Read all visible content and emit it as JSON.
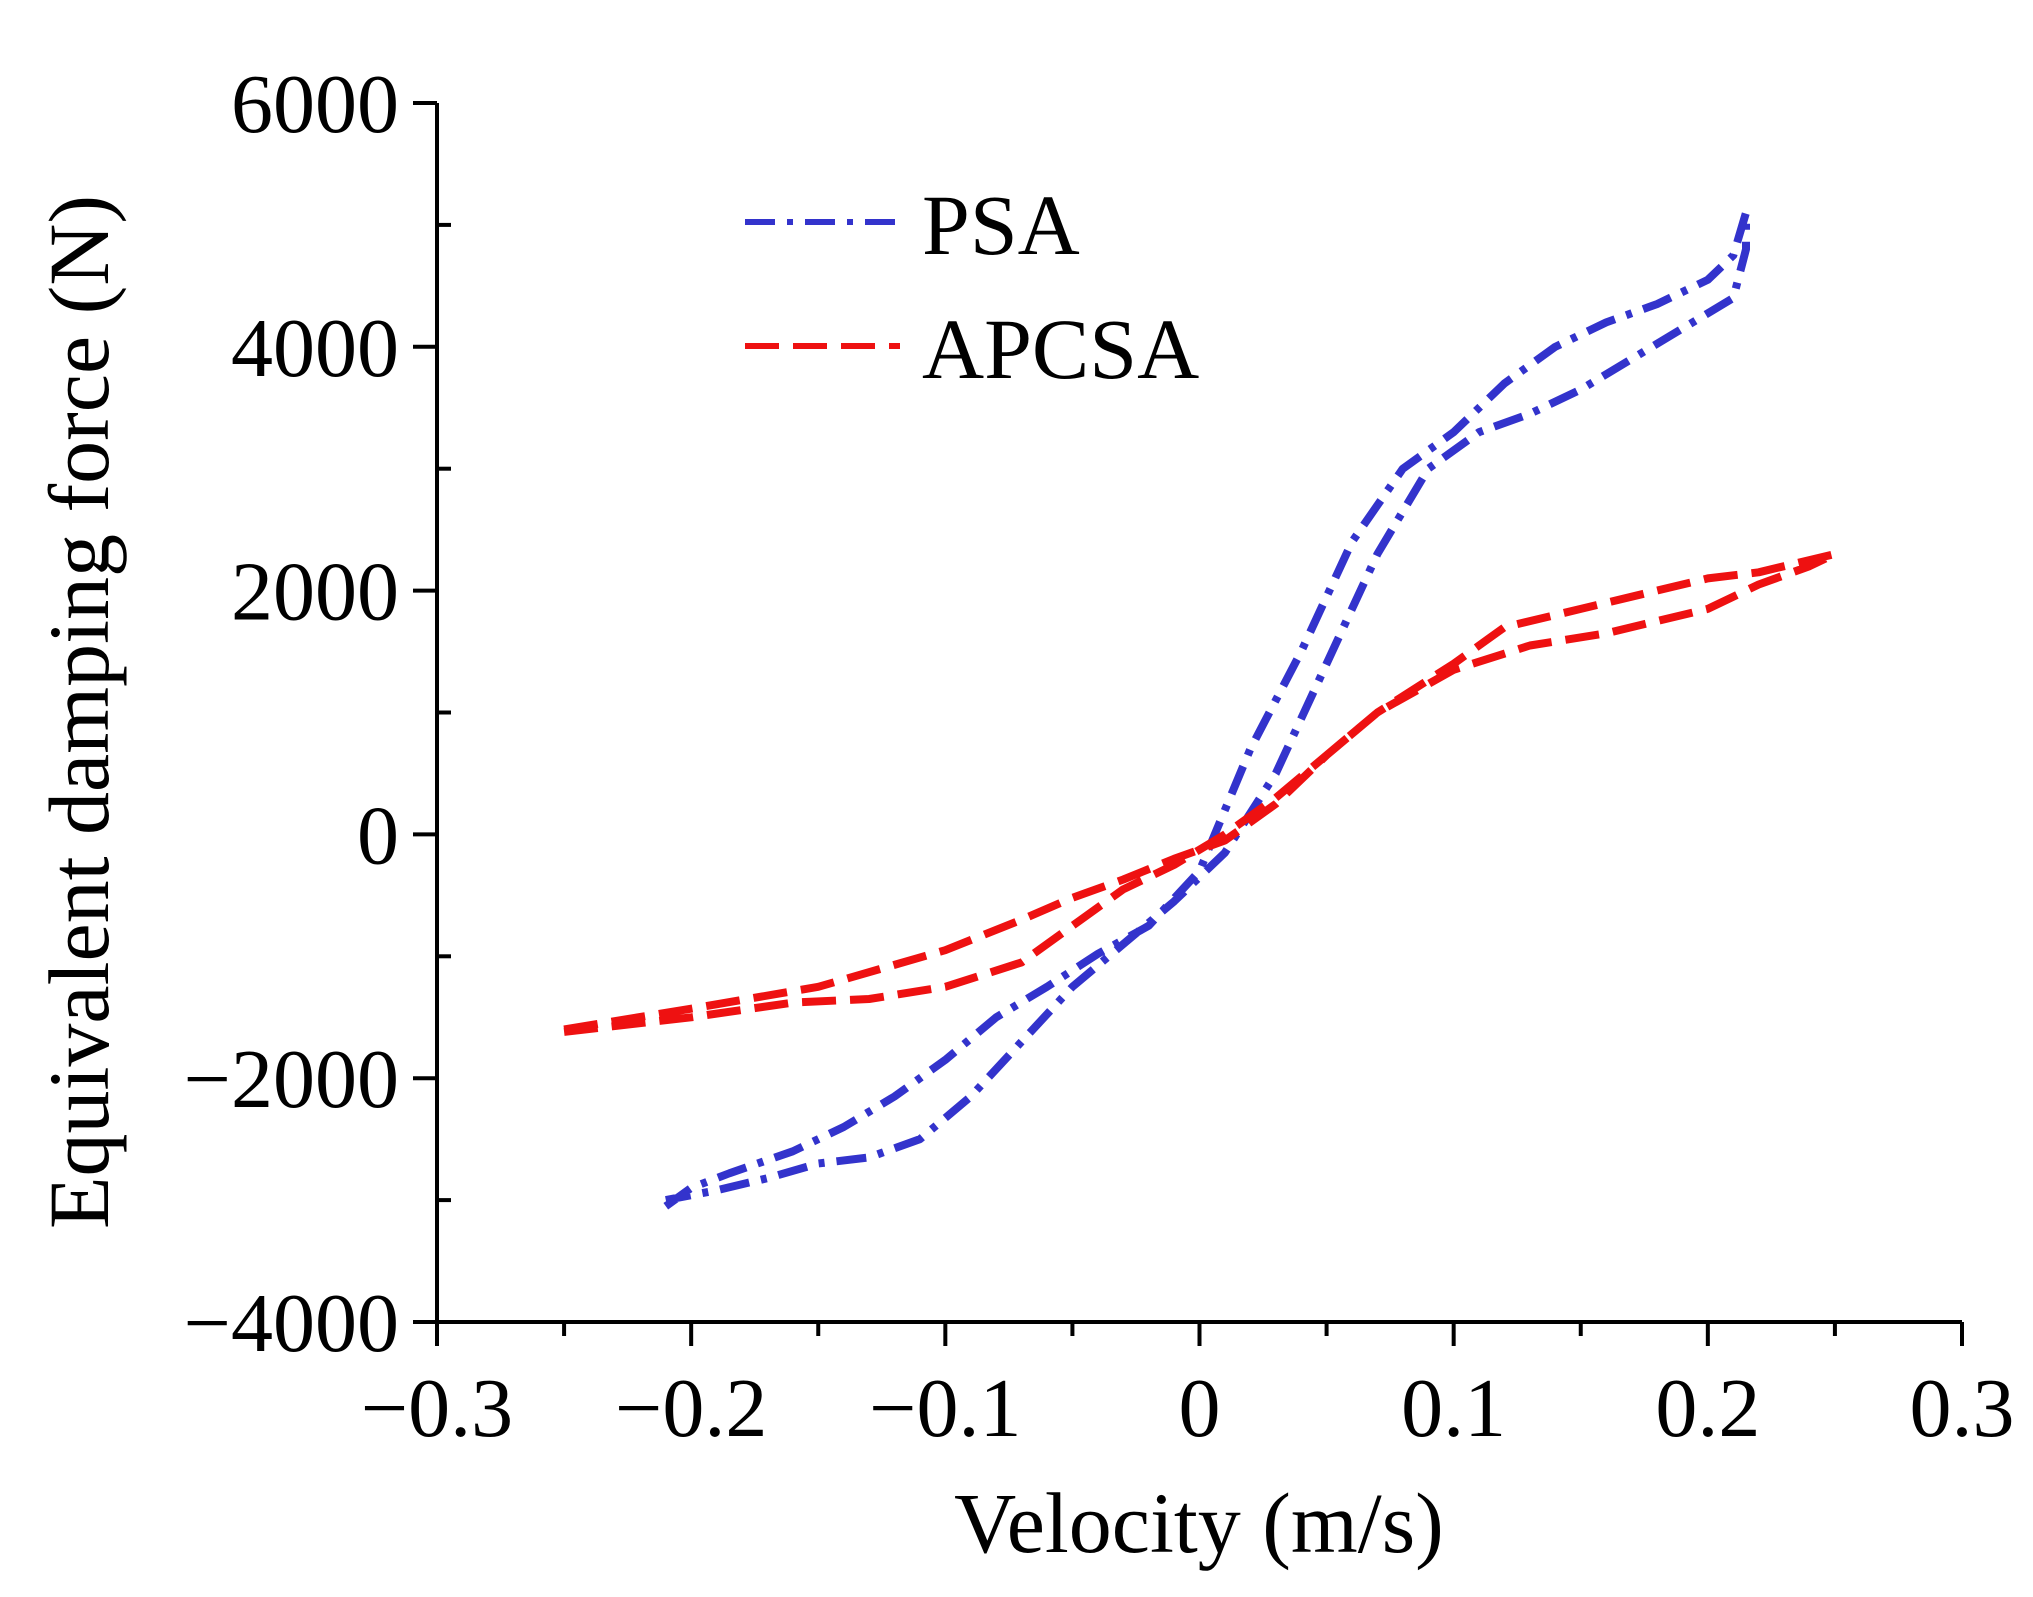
{
  "chart_data": {
    "type": "line",
    "title": "",
    "xlabel": "Velocity (m/s)",
    "ylabel": "Equivalent damping force (N)",
    "xlim": [
      -0.3,
      0.3
    ],
    "ylim": [
      -4000,
      6000
    ],
    "xticks": [
      -0.3,
      -0.2,
      -0.1,
      0,
      0.1,
      0.2,
      0.3
    ],
    "xtick_labels": [
      "−0.3",
      "−0.2",
      "−0.1",
      "0",
      "0.1",
      "0.2",
      "0.3"
    ],
    "yticks": [
      -4000,
      -2000,
      0,
      2000,
      4000,
      6000
    ],
    "ytick_labels": [
      "−4000",
      "−2000",
      "0",
      "2000",
      "4000",
      "6000"
    ],
    "grid": false,
    "legend_position": "top-left",
    "series": [
      {
        "name": "PSA",
        "color": "#3333cc",
        "style": "dash-dot",
        "x": [
          -0.21,
          -0.2,
          -0.185,
          -0.16,
          -0.14,
          -0.12,
          -0.1,
          -0.08,
          -0.06,
          -0.04,
          -0.02,
          0,
          0.02,
          0.04,
          0.06,
          0.08,
          0.1,
          0.12,
          0.14,
          0.16,
          0.18,
          0.2,
          0.21,
          0.215,
          0.215,
          0.21,
          0.19,
          0.17,
          0.15,
          0.13,
          0.11,
          0.09,
          0.07,
          0.05,
          0.03,
          0.01,
          -0.01,
          -0.03,
          -0.05,
          -0.07,
          -0.09,
          -0.11,
          -0.13,
          -0.15,
          -0.17,
          -0.19,
          -0.21
        ],
        "y": [
          -3050,
          -2900,
          -2780,
          -2600,
          -2400,
          -2150,
          -1850,
          -1500,
          -1250,
          -980,
          -750,
          -300,
          700,
          1500,
          2400,
          3000,
          3300,
          3700,
          4000,
          4200,
          4350,
          4550,
          4750,
          5100,
          4800,
          4400,
          4150,
          3900,
          3650,
          3450,
          3300,
          3000,
          2300,
          1400,
          500,
          -150,
          -550,
          -900,
          -1250,
          -1700,
          -2150,
          -2500,
          -2650,
          -2700,
          -2820,
          -2920,
          -3000
        ]
      },
      {
        "name": "APCSA",
        "color": "#ee1111",
        "style": "dash",
        "x": [
          -0.25,
          -0.2,
          -0.15,
          -0.1,
          -0.07,
          -0.05,
          -0.03,
          -0.01,
          0.01,
          0.03,
          0.05,
          0.07,
          0.1,
          0.12,
          0.15,
          0.18,
          0.2,
          0.22,
          0.25,
          0.24,
          0.22,
          0.2,
          0.18,
          0.16,
          0.13,
          0.1,
          0.07,
          0.05,
          0.03,
          0.01,
          -0.01,
          -0.03,
          -0.05,
          -0.07,
          -0.1,
          -0.13,
          -0.16,
          -0.2,
          -0.25
        ],
        "y": [
          -1600,
          -1430,
          -1250,
          -950,
          -700,
          -520,
          -370,
          -200,
          -50,
          250,
          650,
          1000,
          1400,
          1700,
          1850,
          2000,
          2100,
          2150,
          2300,
          2200,
          2050,
          1850,
          1750,
          1650,
          1550,
          1350,
          1000,
          650,
          300,
          0,
          -250,
          -450,
          -750,
          -1050,
          -1250,
          -1350,
          -1380,
          -1500,
          -1620
        ]
      }
    ]
  }
}
